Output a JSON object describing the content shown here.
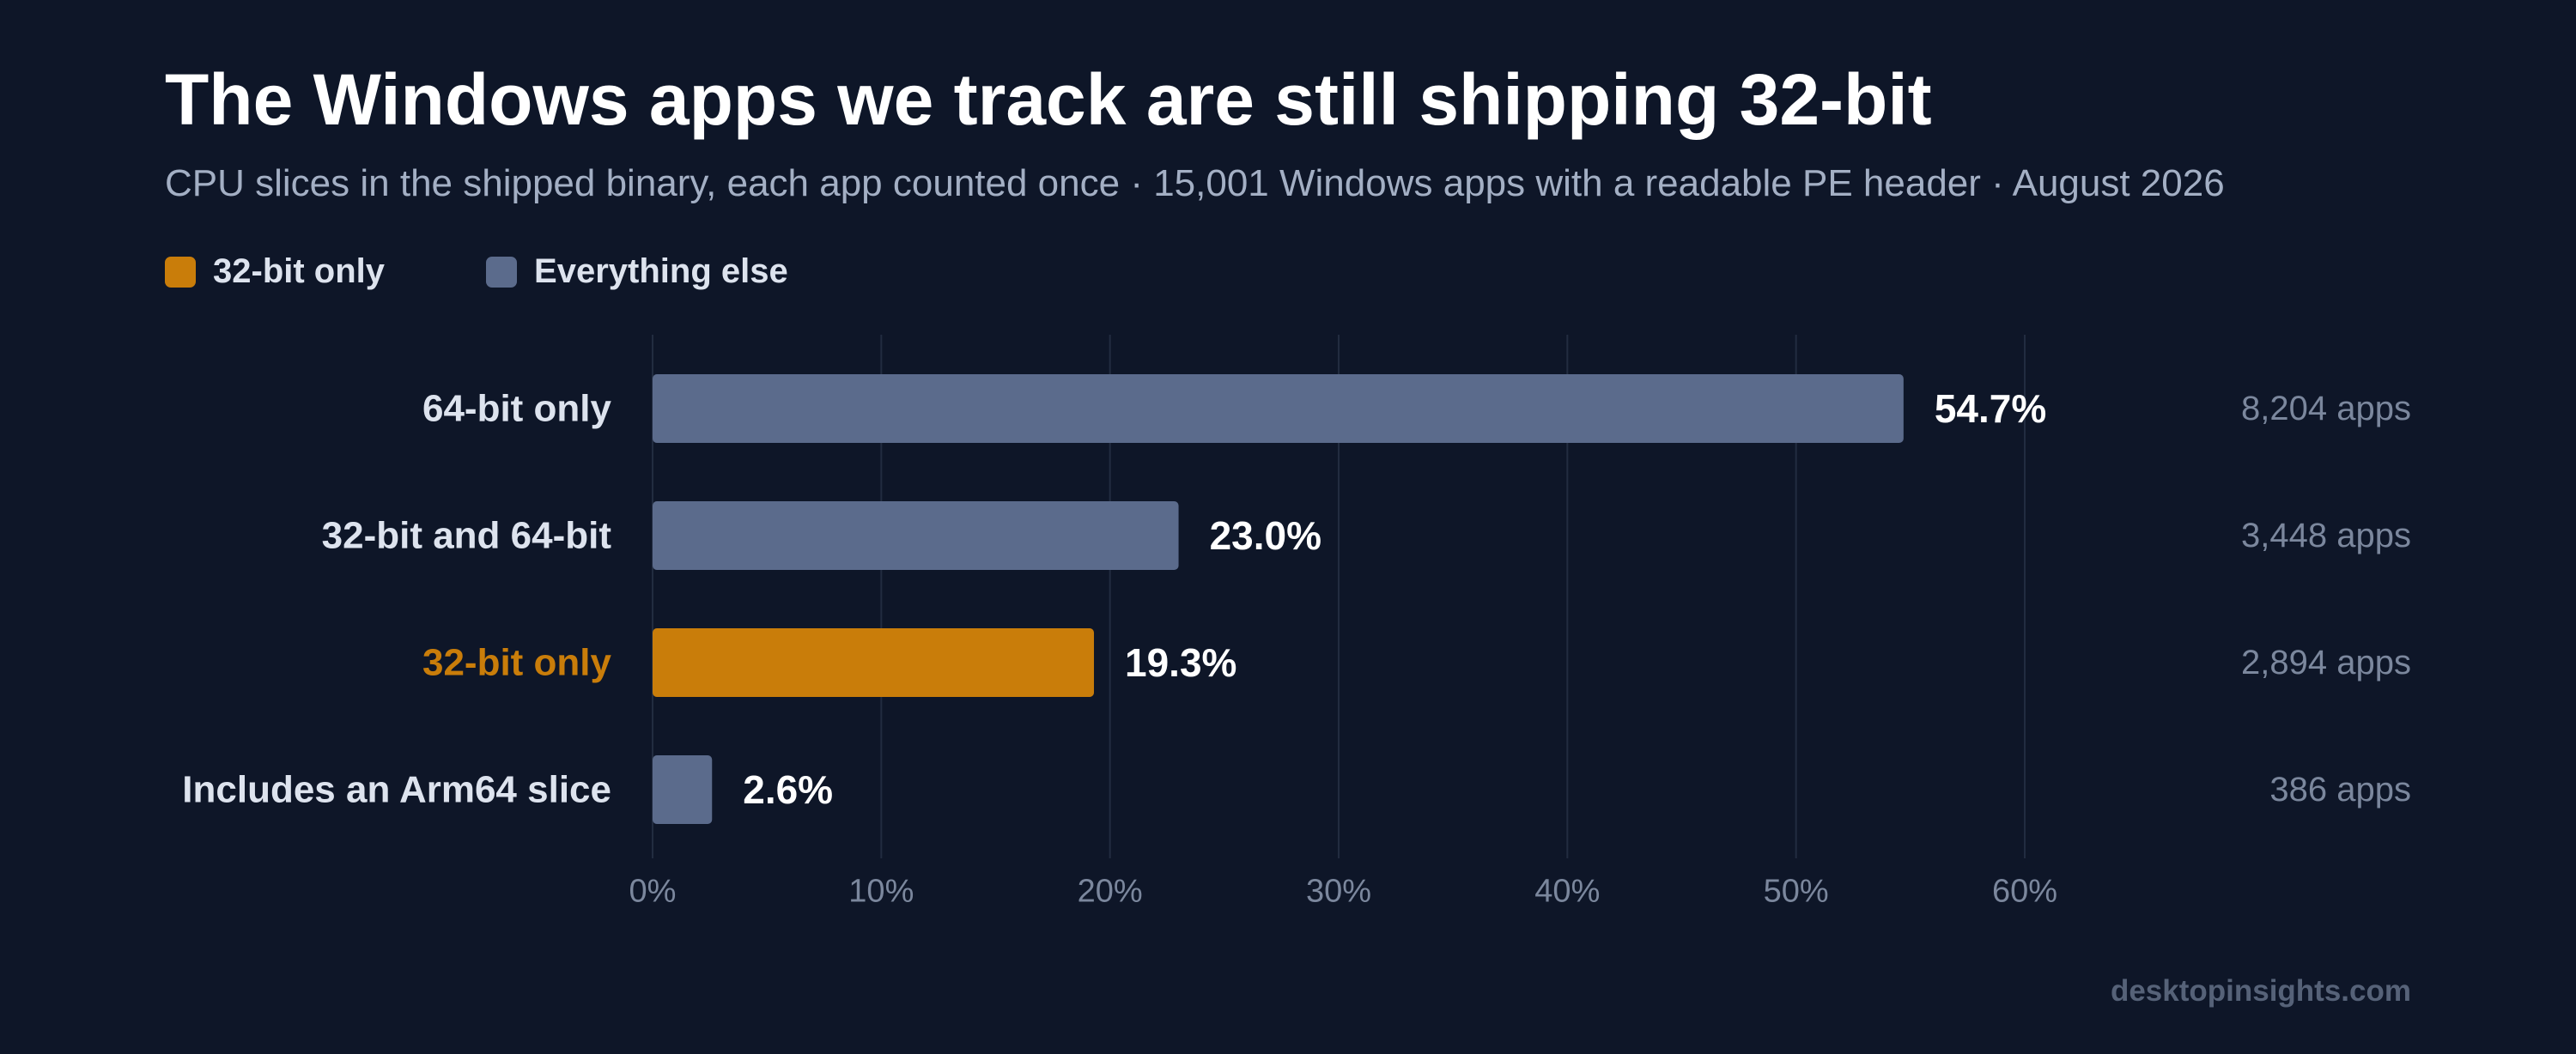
{
  "chart_data": {
    "type": "bar",
    "orientation": "horizontal",
    "title": "The Windows apps we track are still shipping 32-bit",
    "subtitle": "CPU slices in the shipped binary, each app counted once · 15,001 Windows apps with a readable PE header · August 2026",
    "legend": [
      {
        "label": "32-bit only",
        "color": "#c97d0a"
      },
      {
        "label": "Everything else",
        "color": "#5b6b8c"
      }
    ],
    "legend_position": "top-left",
    "categories": [
      "64-bit only",
      "32-bit and 64-bit",
      "32-bit only",
      "Includes an Arm64 slice"
    ],
    "values": [
      54.7,
      23.0,
      19.3,
      2.6
    ],
    "value_labels": [
      "54.7%",
      "23.0%",
      "19.3%",
      "2.6%"
    ],
    "counts": [
      "8,204 apps",
      "3,448 apps",
      "2,894 apps",
      "386 apps"
    ],
    "highlight": [
      false,
      false,
      true,
      false
    ],
    "xlim": [
      0,
      60
    ],
    "x_ticks": [
      0,
      10,
      20,
      30,
      40,
      50,
      60
    ],
    "x_tick_labels": [
      "0%",
      "10%",
      "20%",
      "30%",
      "40%",
      "50%",
      "60%"
    ],
    "grid": true,
    "source": "desktopinsights.com"
  },
  "colors": {
    "background": "#0e1628",
    "highlight": "#c97d0a",
    "bar": "#5b6b8c",
    "gridline": "#222c40",
    "category_label": "#dde3ee",
    "value_label": "#ffffff",
    "count_label": "#7b879d",
    "tick_label": "#7b879d"
  }
}
